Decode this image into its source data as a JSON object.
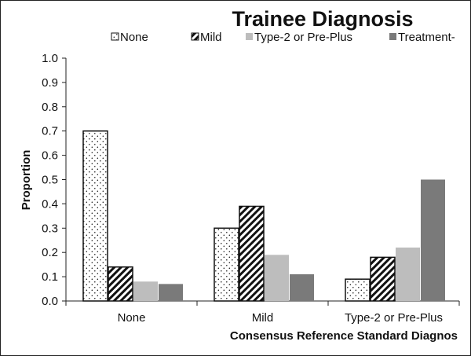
{
  "chart_data": {
    "type": "bar",
    "title": "Trainee Diagnosis",
    "xlabel": "Consensus Reference Standard Diagnos",
    "ylabel": "Proportion",
    "ylim": [
      0,
      1.0
    ],
    "yticks": [
      "0.0",
      "0.1",
      "0.2",
      "0.3",
      "0.4",
      "0.5",
      "0.6",
      "0.7",
      "0.8",
      "0.9",
      "1.0"
    ],
    "grid": false,
    "legend_placement": "top",
    "categories": [
      "None",
      "Mild",
      "Type-2 or Pre-Plus"
    ],
    "series": [
      {
        "name": "None",
        "values": [
          0.7,
          0.3,
          0.09
        ],
        "pattern": "dots",
        "color": "#ffffff"
      },
      {
        "name": "Mild",
        "values": [
          0.14,
          0.39,
          0.18
        ],
        "pattern": "diagonal-stripes",
        "color": "#ffffff"
      },
      {
        "name": "Type-2 or Pre-Plus",
        "values": [
          0.08,
          0.19,
          0.22
        ],
        "pattern": "solid",
        "color": "#bdbdbd"
      },
      {
        "name": "Treatment-",
        "values": [
          0.07,
          0.11,
          0.5
        ],
        "pattern": "solid",
        "color": "#7a7a7a"
      }
    ]
  }
}
